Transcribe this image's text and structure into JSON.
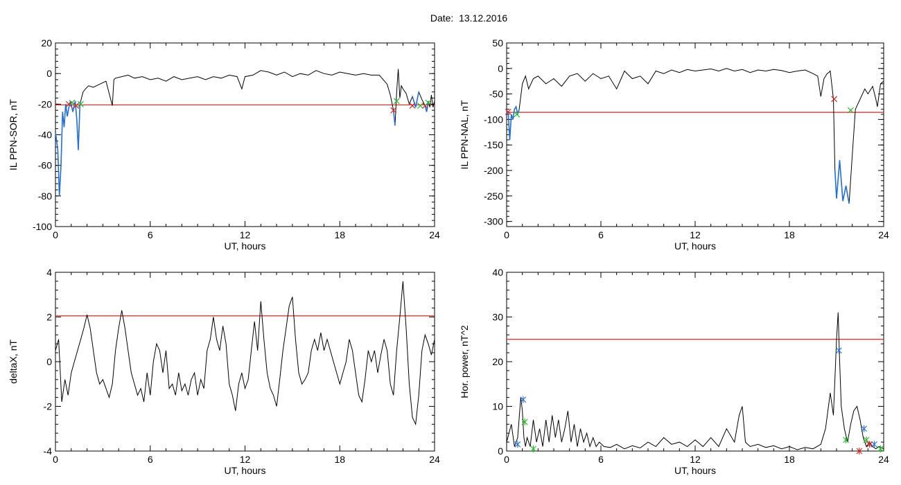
{
  "figure": {
    "title": "Date:  13.12.2016"
  },
  "chart_data": [
    {
      "type": "line",
      "xlabel": "UT, hours",
      "ylabel": "IL PPN-SOR, nT",
      "xlim": [
        0,
        24
      ],
      "ylim": [
        -100,
        20
      ],
      "xticks": [
        0,
        6,
        12,
        18,
        24
      ],
      "yticks": [
        -100,
        -80,
        -60,
        -40,
        -20,
        0,
        20
      ],
      "threshold": -20.5,
      "colors": {
        "line": "#000000",
        "highlight": "#1f6fe0",
        "threshold": "#e02020",
        "start_marker": "#e02020",
        "end_marker": "#22bb22"
      },
      "series": [
        {
          "x": [
            0,
            0.15,
            0.25,
            0.35,
            0.45,
            0.55,
            0.65,
            0.75,
            0.85,
            0.95,
            1.1,
            1.25,
            1.35,
            1.45,
            1.55,
            1.6,
            1.75,
            1.9,
            2.1,
            2.4,
            2.8,
            3.2,
            3.6,
            3.7,
            3.8,
            4.2,
            4.6,
            5.0,
            5.5,
            6.0,
            6.5,
            7.0,
            7.5,
            8.0,
            8.5,
            9.0,
            9.5,
            10.0,
            10.5,
            11.0,
            11.5,
            11.8,
            12.0,
            12.5,
            13.0,
            13.5,
            14.0,
            14.5,
            15.0,
            15.5,
            16.0,
            16.5,
            17.0,
            17.5,
            18.0,
            18.5,
            19.0,
            19.5,
            20.0,
            20.5,
            21.0,
            21.2,
            21.4,
            21.5,
            21.6,
            21.7,
            21.8,
            21.9,
            22.0,
            22.2,
            22.4,
            22.6,
            22.8,
            23.0,
            23.2,
            23.4,
            23.5,
            23.6,
            23.7,
            23.8,
            23.9,
            24.0
          ],
          "y": [
            -38,
            -50,
            -80,
            -60,
            -25,
            -35,
            -20,
            -28,
            -22,
            -18,
            -25,
            -18,
            -30,
            -50,
            -20,
            -18,
            -12,
            -10,
            -8,
            -9,
            -7,
            -5,
            -21,
            -4,
            -3,
            -2,
            -1,
            -3,
            -2,
            -4,
            -3,
            -5,
            -2,
            -4,
            -3,
            -2,
            -4,
            -2,
            -3,
            -1,
            -2,
            -10,
            -2,
            -1,
            2,
            1,
            -1,
            1,
            -2,
            0,
            -1,
            2,
            0,
            -1,
            1,
            0,
            -1,
            0,
            -1,
            -1,
            -7,
            -14,
            -24,
            -34,
            -12,
            3,
            -16,
            -8,
            -10,
            -13,
            -20,
            -15,
            -22,
            -12,
            -17,
            -21,
            -25,
            -18,
            -22,
            -14,
            -22,
            -18
          ]
        }
      ],
      "highlights": [
        [
          0,
          1.6
        ],
        [
          21.35,
          21.5
        ],
        [
          22.6,
          23.0
        ],
        [
          23.35,
          23.6
        ]
      ],
      "start_markers": {
        "x": [
          0.85,
          1.3,
          21.4,
          22.6,
          23.4
        ],
        "y": [
          -20,
          -21,
          -24,
          -21,
          -21
        ]
      },
      "end_markers": {
        "x": [
          1.05,
          1.6,
          21.6,
          23.1,
          23.6
        ],
        "y": [
          -19,
          -20,
          -18,
          -21,
          -19
        ]
      }
    },
    {
      "type": "line",
      "xlabel": "UT, hours",
      "ylabel": "IL PPN-NAL, nT",
      "xlim": [
        0,
        24
      ],
      "ylim": [
        -310,
        50
      ],
      "xticks": [
        0,
        6,
        12,
        18,
        24
      ],
      "yticks": [
        -300,
        -250,
        -200,
        -150,
        -100,
        -50,
        0,
        50
      ],
      "threshold": -86,
      "colors": {
        "line": "#000000",
        "highlight": "#1f6fe0",
        "threshold": "#e02020",
        "start_marker": "#e02020",
        "end_marker": "#22bb22"
      },
      "series": [
        {
          "x": [
            0,
            0.1,
            0.2,
            0.3,
            0.4,
            0.5,
            0.6,
            0.7,
            0.8,
            1.0,
            1.2,
            1.4,
            1.7,
            2.0,
            2.5,
            3.0,
            3.5,
            4.0,
            4.5,
            5.0,
            5.5,
            6.0,
            6.5,
            7.0,
            7.5,
            8.0,
            8.5,
            9.0,
            9.5,
            10.0,
            10.5,
            11.0,
            11.5,
            12.0,
            12.5,
            13.0,
            13.5,
            14.0,
            14.5,
            15.0,
            15.5,
            16.0,
            16.5,
            17.0,
            17.5,
            18.0,
            18.5,
            19.0,
            19.5,
            19.8,
            20.0,
            20.2,
            20.4,
            20.5,
            20.6,
            20.8,
            20.9,
            21.0,
            21.2,
            21.4,
            21.6,
            21.8,
            22.0,
            22.2,
            22.5,
            22.8,
            23.0,
            23.3,
            23.5,
            23.6,
            23.8,
            24.0
          ],
          "y": [
            -85,
            -88,
            -140,
            -90,
            -100,
            -80,
            -75,
            -90,
            -80,
            -30,
            -15,
            -40,
            -20,
            -15,
            -30,
            -20,
            -35,
            -15,
            -10,
            -25,
            -10,
            -20,
            -15,
            -40,
            -5,
            -20,
            -15,
            -30,
            -5,
            -10,
            -3,
            -8,
            -2,
            -5,
            -3,
            -1,
            -5,
            0,
            -5,
            -2,
            -8,
            -3,
            -5,
            -2,
            -4,
            -8,
            -5,
            -3,
            -10,
            -15,
            -55,
            -20,
            -10,
            -8,
            -5,
            -60,
            -200,
            -255,
            -180,
            -260,
            -230,
            -265,
            -170,
            -80,
            -60,
            -40,
            -50,
            -35,
            -60,
            -75,
            -30,
            -25
          ]
        }
      ],
      "highlights": [
        [
          0,
          0.8
        ],
        [
          20.9,
          21.9
        ]
      ],
      "start_markers": {
        "x": [
          0.1,
          20.85
        ],
        "y": [
          -85,
          -60
        ]
      },
      "end_markers": {
        "x": [
          0.65,
          21.9
        ],
        "y": [
          -90,
          -82
        ]
      }
    },
    {
      "type": "line",
      "xlabel": "UT, hours",
      "ylabel": "deltaX, nT",
      "xlim": [
        0,
        24
      ],
      "ylim": [
        -4,
        4
      ],
      "xticks": [
        0,
        6,
        12,
        18,
        24
      ],
      "yticks": [
        -4,
        -2,
        0,
        2,
        4
      ],
      "threshold": 2.05,
      "colors": {
        "line": "#000000",
        "threshold": "#e02020"
      },
      "series": [
        {
          "x": [
            0,
            0.2,
            0.4,
            0.6,
            0.8,
            1.0,
            1.2,
            1.4,
            1.6,
            1.8,
            2.0,
            2.2,
            2.4,
            2.6,
            2.8,
            3.0,
            3.2,
            3.4,
            3.6,
            3.8,
            4.0,
            4.2,
            4.4,
            4.6,
            4.8,
            5.0,
            5.2,
            5.4,
            5.6,
            5.8,
            6.0,
            6.2,
            6.4,
            6.6,
            6.8,
            7.0,
            7.2,
            7.4,
            7.6,
            7.8,
            8.0,
            8.2,
            8.4,
            8.6,
            8.8,
            9.0,
            9.2,
            9.4,
            9.6,
            9.8,
            10.0,
            10.2,
            10.4,
            10.6,
            10.8,
            11.0,
            11.2,
            11.4,
            11.6,
            11.8,
            12.0,
            12.2,
            12.4,
            12.6,
            12.8,
            13.0,
            13.2,
            13.4,
            13.6,
            13.8,
            14.0,
            14.2,
            14.4,
            14.6,
            14.8,
            15.0,
            15.2,
            15.4,
            15.6,
            15.8,
            16.0,
            16.2,
            16.4,
            16.6,
            16.8,
            17.0,
            17.2,
            17.4,
            17.6,
            17.8,
            18.0,
            18.2,
            18.4,
            18.6,
            18.8,
            19.0,
            19.2,
            19.4,
            19.6,
            19.8,
            20.0,
            20.2,
            20.4,
            20.6,
            20.8,
            21.0,
            21.2,
            21.4,
            21.6,
            21.8,
            22.0,
            22.2,
            22.4,
            22.6,
            22.8,
            23.0,
            23.2,
            23.4,
            23.6,
            23.8,
            24.0
          ],
          "y": [
            0.5,
            1.0,
            -1.8,
            -0.8,
            -1.5,
            -0.5,
            0,
            0.5,
            1.0,
            1.5,
            2.1,
            1.5,
            0.5,
            -0.5,
            -1.0,
            -0.8,
            -1.2,
            -1.6,
            -1.0,
            0.5,
            1.5,
            2.3,
            1.5,
            0.5,
            -0.5,
            -1.0,
            -1.5,
            -1.2,
            -1.8,
            -0.5,
            -1.5,
            0,
            0.8,
            0.5,
            -0.5,
            0.5,
            -1.2,
            -1.0,
            -1.5,
            -0.5,
            -1.3,
            -1.0,
            -1.5,
            -0.8,
            -0.5,
            -1.5,
            -0.8,
            -1.2,
            0.5,
            1.0,
            2.0,
            1.0,
            0.5,
            1.6,
            0.8,
            -1.0,
            -1.5,
            -2.2,
            -1.0,
            -0.5,
            -1.2,
            -0.8,
            0.5,
            1.8,
            0.5,
            2.7,
            1.0,
            -0.5,
            -1.2,
            -1.5,
            -2.0,
            -0.8,
            0.5,
            1.5,
            2.5,
            2.9,
            1.0,
            -0.5,
            -1.0,
            -0.8,
            -0.5,
            0.5,
            1.0,
            0.5,
            1.3,
            0.5,
            1.0,
            0.5,
            0,
            -0.5,
            -1.0,
            -0.5,
            0,
            1.0,
            0.5,
            -0.5,
            -1.5,
            -1.8,
            -0.8,
            0.5,
            0,
            0.5,
            -0.5,
            0.3,
            1.0,
            0.5,
            -1.0,
            -1.5,
            0.5,
            2.0,
            3.6,
            1.5,
            -1.0,
            -2.5,
            -2.8,
            -1.5,
            0.5,
            1.2,
            0.8,
            0.3,
            1.0
          ]
        }
      ]
    },
    {
      "type": "line",
      "xlabel": "UT, hours",
      "ylabel": "Hor. power, nT^2",
      "xlim": [
        0,
        24
      ],
      "ylim": [
        0,
        40
      ],
      "xticks": [
        0,
        6,
        12,
        18,
        24
      ],
      "yticks": [
        0,
        10,
        20,
        30,
        40
      ],
      "threshold": 25,
      "colors": {
        "line": "#000000",
        "threshold": "#e02020",
        "blue_marker": "#1f6fe0",
        "green_marker": "#22bb22",
        "red_marker": "#e02020"
      },
      "series": [
        {
          "x": [
            0,
            0.3,
            0.5,
            0.7,
            0.9,
            1.0,
            1.1,
            1.2,
            1.3,
            1.5,
            1.7,
            1.9,
            2.1,
            2.3,
            2.5,
            2.7,
            2.9,
            3.1,
            3.3,
            3.5,
            3.7,
            3.9,
            4.1,
            4.3,
            4.5,
            4.7,
            4.9,
            5.1,
            5.3,
            5.5,
            5.7,
            5.9,
            6.2,
            6.6,
            7.0,
            7.5,
            8.0,
            8.5,
            9.0,
            9.5,
            10.0,
            10.5,
            11.0,
            11.5,
            12.0,
            12.5,
            13.0,
            13.5,
            14.0,
            14.5,
            14.8,
            15.0,
            15.2,
            15.5,
            16.0,
            16.5,
            17.0,
            17.5,
            18.0,
            18.5,
            19.0,
            19.5,
            20.0,
            20.3,
            20.6,
            20.8,
            21.0,
            21.1,
            21.2,
            21.3,
            21.5,
            21.7,
            21.9,
            22.1,
            22.3,
            22.5,
            22.7,
            22.9,
            23.1,
            23.3,
            23.5,
            23.7,
            24.0
          ],
          "y": [
            2,
            6,
            1,
            3,
            12,
            9,
            3,
            1,
            3,
            1,
            7,
            2,
            5,
            1,
            7,
            2,
            8,
            3,
            7,
            2,
            5,
            9,
            2,
            6,
            1,
            5,
            2,
            4,
            1,
            3,
            1,
            2,
            1,
            0.8,
            1.5,
            0.5,
            1.2,
            0.7,
            2,
            1,
            3,
            1.5,
            2,
            1,
            2.5,
            1,
            3,
            1,
            5,
            2,
            8,
            10,
            2,
            1,
            1.5,
            0.8,
            1.2,
            0.5,
            1,
            0.3,
            0.8,
            0.5,
            1.5,
            5,
            13,
            8,
            25,
            31,
            20,
            10,
            5,
            2,
            6,
            9,
            10,
            7,
            3,
            1,
            2,
            1,
            0.5,
            1,
            0.5
          ]
        }
      ],
      "blue_markers": {
        "x": [
          0.7,
          1.05,
          21.15,
          22.75,
          23.4
        ],
        "y": [
          1.5,
          11.5,
          22.5,
          5,
          1.5
        ]
      },
      "green_markers": {
        "x": [
          1.15,
          1.7,
          21.6,
          22.9,
          23.8
        ],
        "y": [
          6.5,
          0.5,
          2.5,
          2.5,
          0.5
        ]
      },
      "red_markers": {
        "x": [
          22.45,
          23.1
        ],
        "y": [
          0,
          1.5
        ]
      }
    }
  ]
}
